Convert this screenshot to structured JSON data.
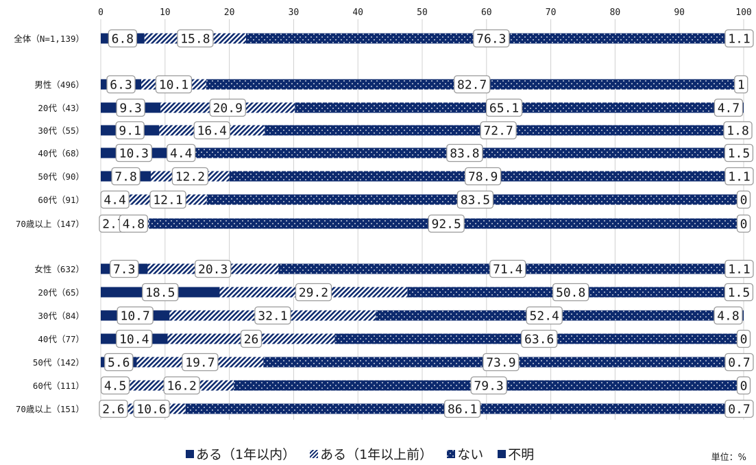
{
  "chart_data": {
    "type": "bar",
    "orientation": "horizontal",
    "stacked": true,
    "percent": true,
    "xlim": [
      0,
      100
    ],
    "x_ticks": [
      "0",
      "10",
      "20",
      "30",
      "40",
      "50",
      "60",
      "70",
      "80",
      "90",
      "100"
    ],
    "categories": [
      "全体（N=1,139）",
      "男性（496）",
      "20代（43）",
      "30代（55）",
      "40代（68）",
      "50代（90）",
      "60代（91）",
      "70歳以上（147）",
      "女性（632）",
      "20代（65）",
      "30代（84）",
      "40代（77）",
      "50代（142）",
      "60代（111）",
      "70歳以上（151）"
    ],
    "groups": [
      [
        0
      ],
      [
        1,
        2,
        3,
        4,
        5,
        6,
        7
      ],
      [
        8,
        9,
        10,
        11,
        12,
        13,
        14
      ]
    ],
    "series": [
      {
        "name": "ある（1年以内）",
        "fill": "solid",
        "values": [
          6.8,
          6.3,
          9.3,
          9.1,
          10.3,
          7.8,
          4.4,
          2.7,
          7.3,
          18.5,
          10.7,
          10.4,
          5.6,
          4.5,
          2.6
        ]
      },
      {
        "name": "ある（1年以上前）",
        "fill": "diagonal-stripes",
        "values": [
          15.8,
          10.1,
          20.9,
          16.4,
          4.4,
          12.2,
          12.1,
          4.8,
          20.3,
          29.2,
          32.1,
          26,
          19.7,
          16.2,
          10.6
        ]
      },
      {
        "name": "ない",
        "fill": "dotted",
        "values": [
          76.3,
          82.7,
          65.1,
          72.7,
          83.8,
          78.9,
          83.5,
          92.5,
          71.4,
          50.8,
          52.4,
          63.6,
          73.9,
          79.3,
          86.1
        ]
      },
      {
        "name": "不明",
        "fill": "solid",
        "values": [
          1.1,
          1,
          4.7,
          1.8,
          1.5,
          1.1,
          0,
          0,
          1.1,
          1.5,
          4.8,
          0,
          0.7,
          0,
          0.7
        ]
      }
    ],
    "colors": {
      "bar": "#0d2a6e",
      "pattern_light": "#ffffff",
      "grid": "#d0d0d0",
      "label_border": "#9a9a9a"
    },
    "legend_position": "bottom-center",
    "unit_note": "単位：%",
    "grid": true
  }
}
